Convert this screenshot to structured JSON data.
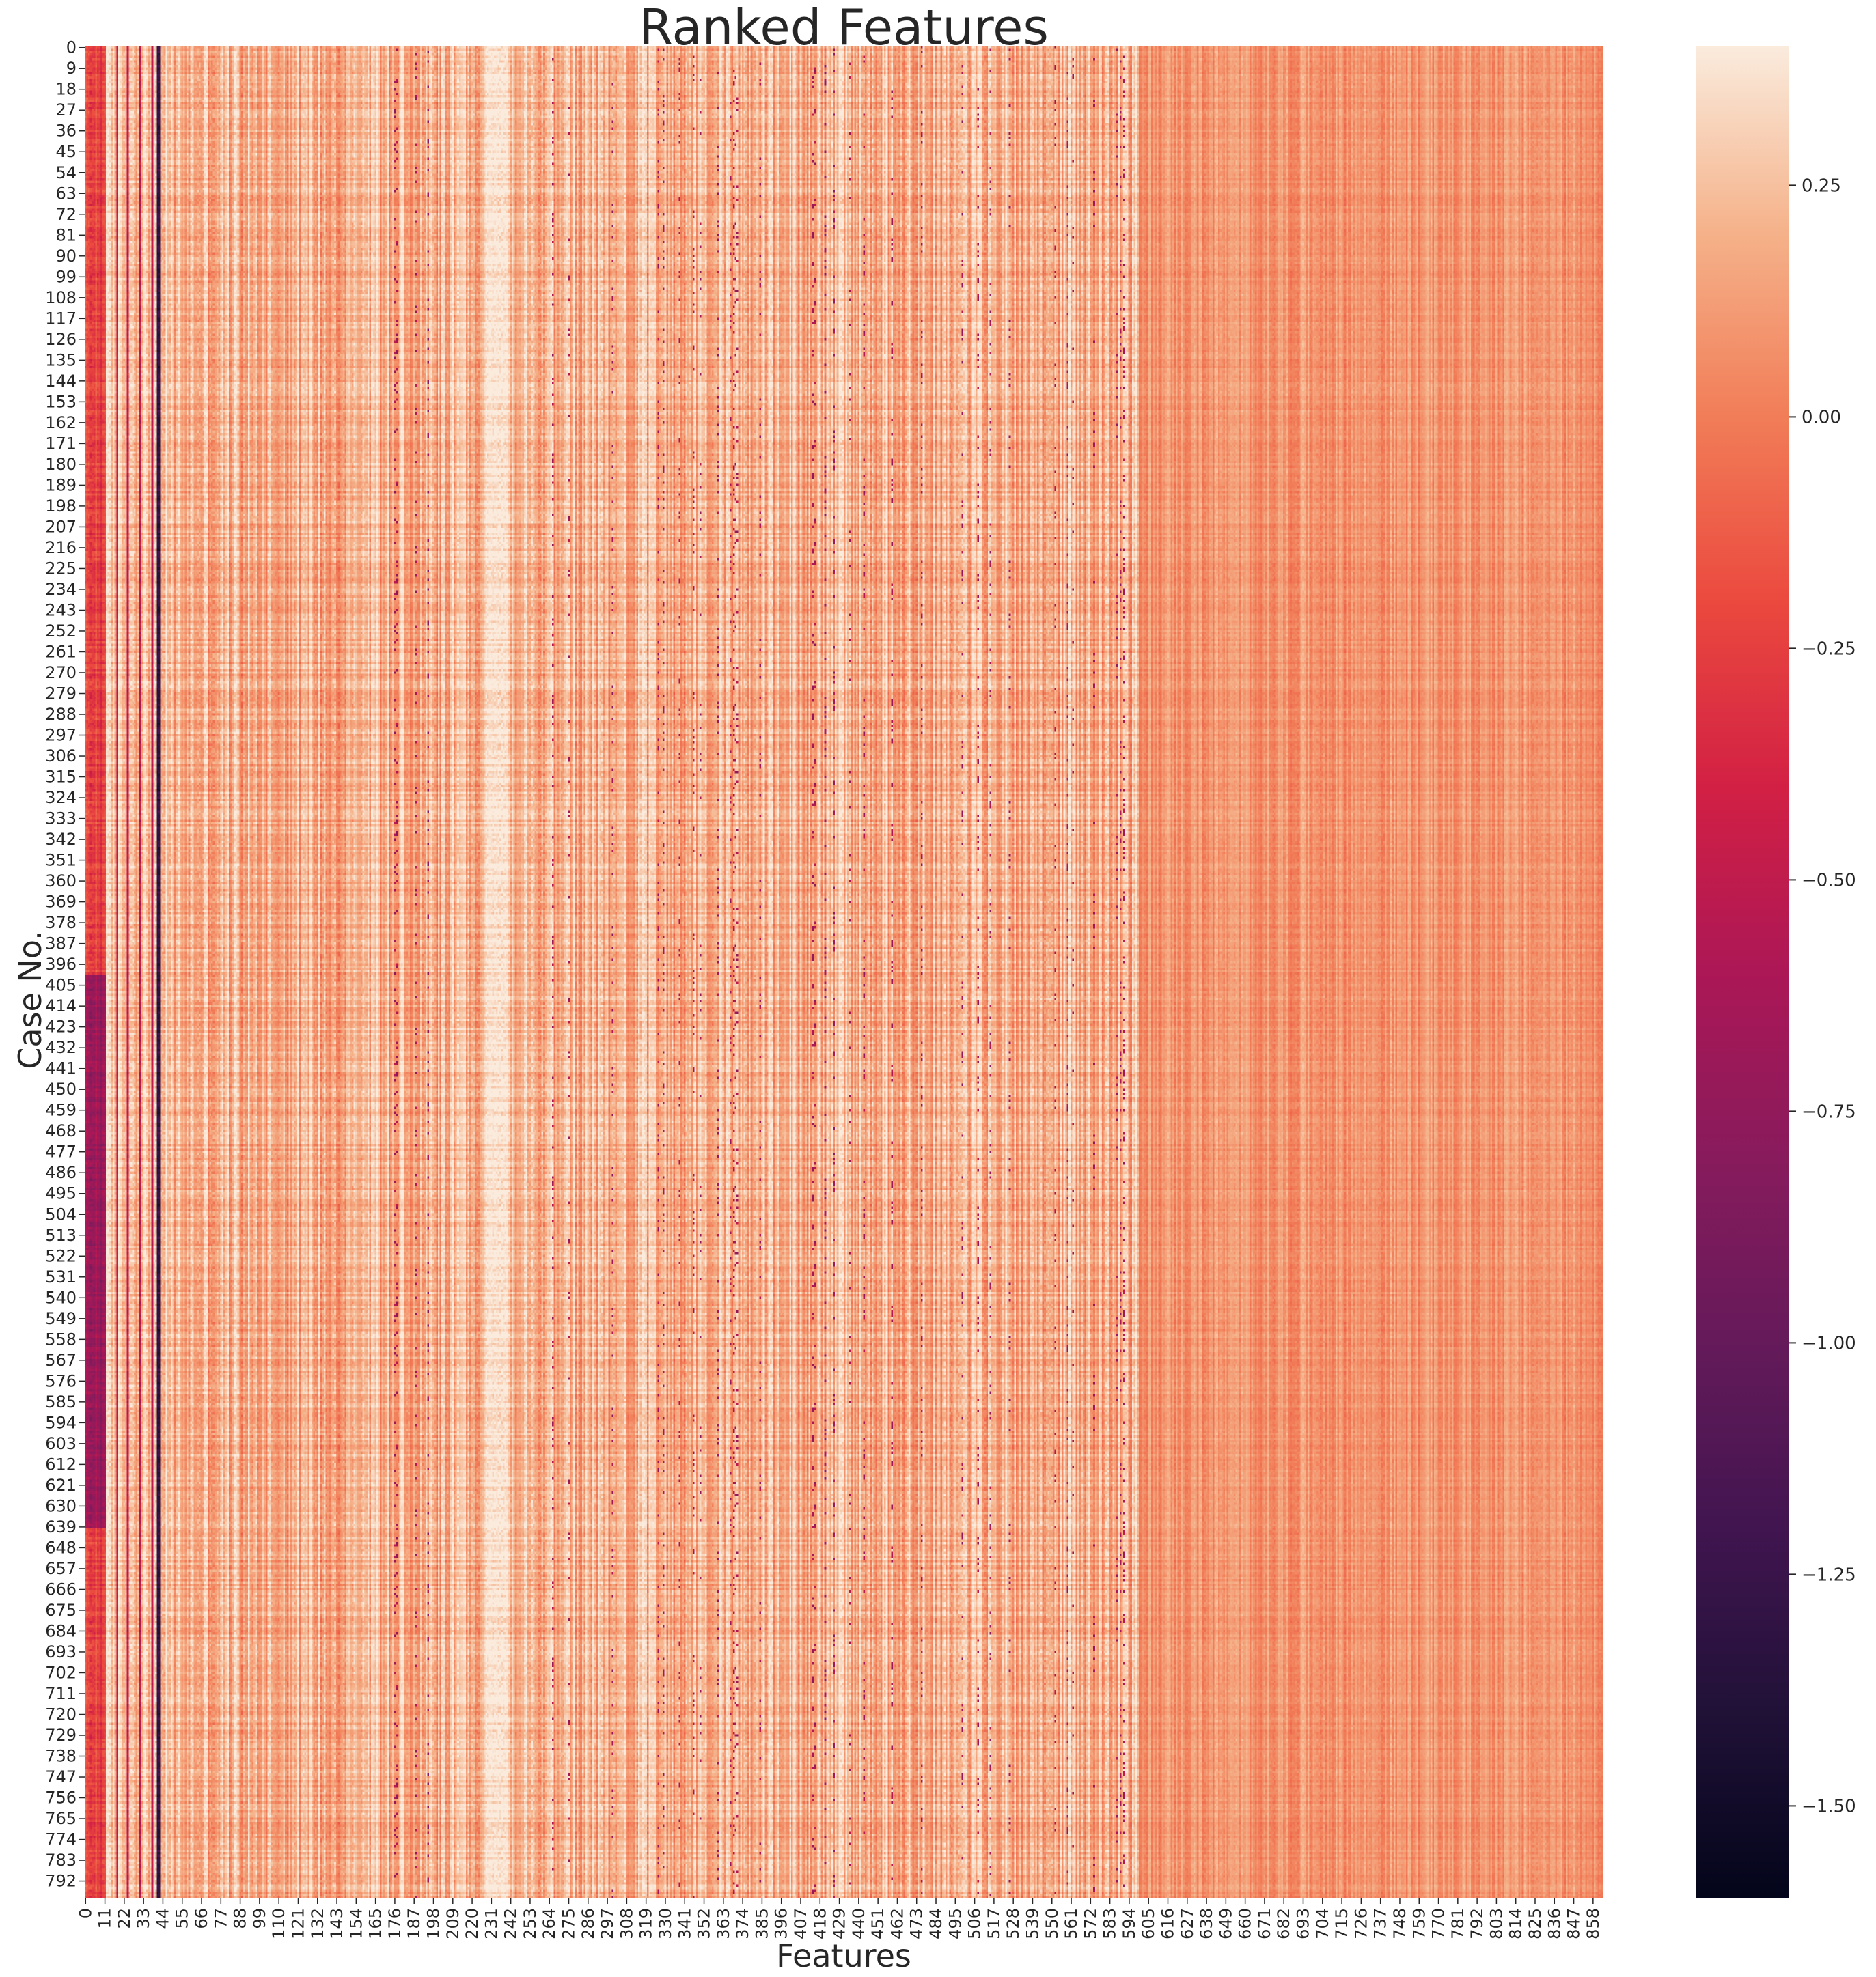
{
  "chart_data": {
    "type": "heatmap",
    "title": "Ranked Features",
    "xlabel": "Features",
    "ylabel": "Case No.",
    "x_tick_labels": [
      "0",
      "11",
      "22",
      "33",
      "44",
      "55",
      "66",
      "77",
      "88",
      "99",
      "110",
      "121",
      "132",
      "143",
      "154",
      "165",
      "176",
      "187",
      "198",
      "209",
      "220",
      "231",
      "242",
      "253",
      "264",
      "275",
      "286",
      "297",
      "308",
      "319",
      "330",
      "341",
      "352",
      "363",
      "374",
      "385",
      "396",
      "407",
      "418",
      "429",
      "440",
      "451",
      "462",
      "473",
      "484",
      "495",
      "506",
      "517",
      "528",
      "539",
      "550",
      "561",
      "572",
      "583",
      "594",
      "605",
      "616",
      "627",
      "638",
      "649",
      "660",
      "671",
      "682",
      "693",
      "704",
      "715",
      "726",
      "737",
      "748",
      "759",
      "770",
      "781",
      "792",
      "803",
      "814",
      "825",
      "836",
      "847",
      "858"
    ],
    "y_tick_labels": [
      "0",
      "9",
      "18",
      "27",
      "36",
      "45",
      "54",
      "63",
      "72",
      "81",
      "90",
      "99",
      "108",
      "117",
      "126",
      "135",
      "144",
      "153",
      "162",
      "171",
      "180",
      "189",
      "198",
      "207",
      "216",
      "225",
      "234",
      "243",
      "252",
      "261",
      "270",
      "279",
      "288",
      "297",
      "306",
      "315",
      "324",
      "333",
      "342",
      "351",
      "360",
      "369",
      "378",
      "387",
      "396",
      "405",
      "414",
      "423",
      "432",
      "441",
      "450",
      "459",
      "468",
      "477",
      "486",
      "495",
      "504",
      "513",
      "522",
      "531",
      "540",
      "549",
      "558",
      "567",
      "576",
      "585",
      "594",
      "603",
      "612",
      "621",
      "630",
      "639",
      "648",
      "657",
      "666",
      "675",
      "684",
      "693",
      "702",
      "711",
      "720",
      "729",
      "738",
      "747",
      "756",
      "765",
      "774",
      "783",
      "792"
    ],
    "n_features": 864,
    "n_cases": 800,
    "colorbar": {
      "vmin": -1.6,
      "vmax": 0.4,
      "ticks": [
        0.25,
        0.0,
        -0.25,
        -0.5,
        -0.75,
        -1.0,
        -1.25,
        -1.5
      ],
      "tick_labels": [
        "0.25",
        "0.00",
        "−0.25",
        "−0.50",
        "−0.75",
        "−1.00",
        "−1.25",
        "−1.50"
      ]
    },
    "colormap": "rocket"
  }
}
